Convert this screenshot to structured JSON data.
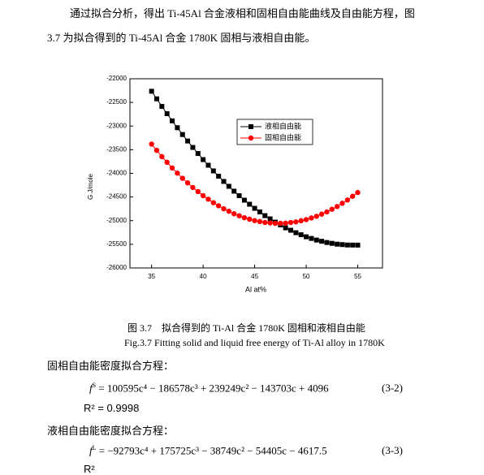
{
  "paragraph": {
    "lines": [
      "通过拟合分析，得出 Ti-45Al 合金液相和固相自由能曲线及自由能方程，图",
      "3.7 为拟合得到的 Ti-45Al 合金 1780K 固相与液相自由能。"
    ]
  },
  "chart_data": {
    "type": "line",
    "xlabel": "Al  at%",
    "ylabel": "G J/mole",
    "x": [
      35,
      35.5,
      36,
      36.5,
      37,
      37.5,
      38,
      38.5,
      39,
      39.5,
      40,
      40.5,
      41,
      41.5,
      42,
      42.5,
      43,
      43.5,
      44,
      44.5,
      45,
      45.5,
      46,
      46.5,
      47,
      47.5,
      48,
      48.5,
      49,
      49.5,
      50,
      50.5,
      51,
      51.5,
      52,
      52.5,
      53,
      53.5,
      54,
      54.5,
      55
    ],
    "series": [
      {
        "name": "液相自由能",
        "color": "#000000",
        "marker": "square",
        "values": [
          -22264,
          -22425,
          -22585,
          -22738,
          -22890,
          -23035,
          -23179,
          -23316,
          -23452,
          -23580,
          -23709,
          -23828,
          -23948,
          -24060,
          -24171,
          -24274,
          -24377,
          -24472,
          -24567,
          -24653,
          -24739,
          -24816,
          -24894,
          -24962,
          -25031,
          -25091,
          -25152,
          -25203,
          -25255,
          -25298,
          -25341,
          -25376,
          -25410,
          -25436,
          -25462,
          -25480,
          -25497,
          -25506,
          -25515,
          -25516,
          -25517
        ]
      },
      {
        "name": "固相自由能",
        "color": "#ff0000",
        "marker": "circle",
        "values": [
          -23382,
          -23514,
          -23646,
          -23766,
          -23886,
          -23995,
          -24104,
          -24201,
          -24299,
          -24385,
          -24471,
          -24546,
          -24621,
          -24685,
          -24749,
          -24802,
          -24854,
          -24896,
          -24938,
          -24969,
          -24999,
          -25019,
          -25039,
          -25048,
          -25057,
          -25055,
          -25053,
          -25039,
          -25026,
          -25002,
          -24978,
          -24943,
          -24908,
          -24862,
          -24816,
          -24759,
          -24701,
          -24633,
          -24564,
          -24485,
          -24405
        ]
      }
    ],
    "xlim": [
      32.9,
      57.4
    ],
    "xticks": [
      35,
      40,
      45,
      50,
      55
    ],
    "ylim": [
      -26000,
      -22000
    ],
    "yticks": [
      -26000,
      -25500,
      -25000,
      -24500,
      -24000,
      -23500,
      -23000,
      -22500,
      -22000
    ],
    "legend": "upper-right"
  },
  "caption": {
    "zh": "图 3.7　拟合得到的 Ti-Al 合金 1780K 固相和液相自由能",
    "en": "Fig.3.7 Fitting solid and liquid free energy of Ti-Al alloy in 1780K"
  },
  "solid": {
    "heading": "固相自由能密度拟合方程：",
    "symbol": "f",
    "sup": "S",
    "rhs": "= 100595c⁴ − 186578c³ + 239249c² − 143703c + 4096",
    "number": "(3-2)",
    "r2": "R² = 0.9998"
  },
  "liquid": {
    "heading": "液相自由能密度拟合方程：",
    "symbol": "f",
    "sup": "L",
    "rhs": "= −92793c⁴ + 175725c³ − 38749c² − 54405c − 4617.5",
    "number": "(3-3)",
    "r2": "R²"
  }
}
